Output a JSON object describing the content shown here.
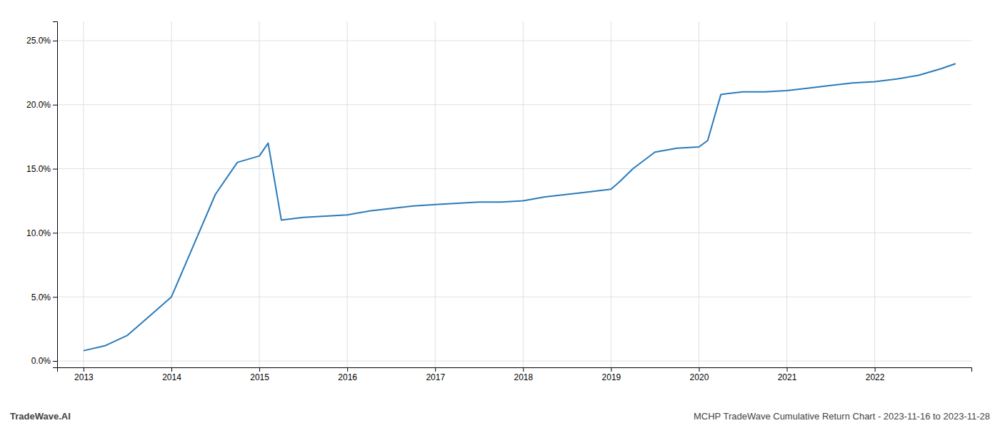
{
  "chart_data": {
    "type": "line",
    "title": "MCHP TradeWave Cumulative Return Chart - 2023-11-16 to 2023-11-28",
    "annotations": [
      "TradeWave.AI"
    ],
    "color": "#2b7bba",
    "x": [
      2013.0,
      2013.25,
      2013.5,
      2013.75,
      2014.0,
      2014.25,
      2014.5,
      2014.75,
      2015.0,
      2015.1,
      2015.25,
      2015.5,
      2015.75,
      2016.0,
      2016.25,
      2016.5,
      2016.75,
      2017.0,
      2017.25,
      2017.5,
      2017.75,
      2018.0,
      2018.25,
      2018.5,
      2018.75,
      2019.0,
      2019.1,
      2019.25,
      2019.5,
      2019.75,
      2020.0,
      2020.1,
      2020.25,
      2020.5,
      2020.75,
      2021.0,
      2021.25,
      2021.5,
      2021.75,
      2022.0,
      2022.25,
      2022.5,
      2022.75,
      2022.92
    ],
    "values": [
      0.008,
      0.012,
      0.02,
      0.035,
      0.05,
      0.09,
      0.13,
      0.155,
      0.16,
      0.17,
      0.11,
      0.112,
      0.113,
      0.114,
      0.117,
      0.119,
      0.121,
      0.122,
      0.123,
      0.124,
      0.124,
      0.125,
      0.128,
      0.13,
      0.132,
      0.134,
      0.14,
      0.15,
      0.163,
      0.166,
      0.167,
      0.172,
      0.208,
      0.21,
      0.21,
      0.211,
      0.213,
      0.215,
      0.217,
      0.218,
      0.22,
      0.223,
      0.228,
      0.232
    ],
    "xlim": [
      2012.7,
      2023.1
    ],
    "ylim": [
      -0.005,
      0.265
    ],
    "xticks": [
      2013,
      2014,
      2015,
      2016,
      2017,
      2018,
      2019,
      2020,
      2021,
      2022
    ],
    "yticks": [
      {
        "value": 0.0,
        "label": "0.0%"
      },
      {
        "value": 0.05,
        "label": "5.0%"
      },
      {
        "value": 0.1,
        "label": "10.0%"
      },
      {
        "value": 0.15,
        "label": "15.0%"
      },
      {
        "value": 0.2,
        "label": "20.0%"
      },
      {
        "value": 0.25,
        "label": "25.0%"
      }
    ],
    "grid": true
  }
}
